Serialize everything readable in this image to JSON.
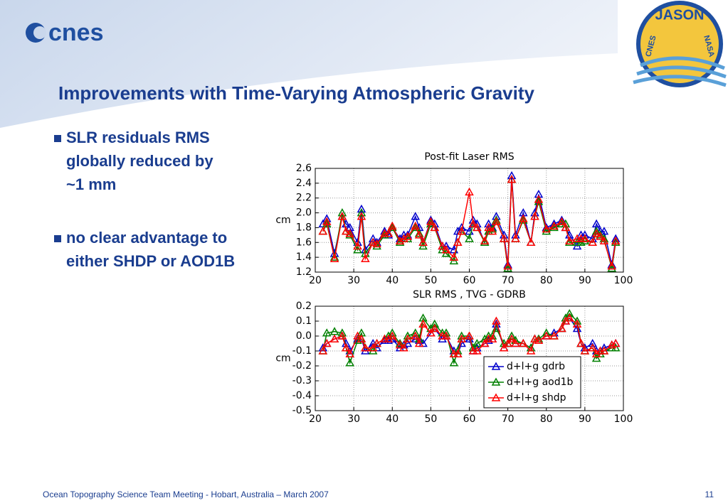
{
  "slide": {
    "logo": "cnes",
    "badge": [
      "JASON",
      "CNES",
      "NASA"
    ],
    "title": "Improvements with Time-Varying Atmospheric Gravity",
    "bullets": [
      [
        "SLR residuals RMS",
        "globally reduced by",
        "~1 mm"
      ],
      [
        "no clear advantage to",
        "either SHDP or AOD1B"
      ]
    ],
    "footer": "Ocean Topography Science Team Meeting - Hobart, Australia – March 2007",
    "page_number": "11"
  },
  "chart_data": [
    {
      "type": "line",
      "title": "Post-fit Laser RMS",
      "ylabel": "cm",
      "grid": true,
      "x": [
        22,
        23,
        25,
        27,
        28,
        29,
        31,
        32,
        33,
        35,
        36,
        38,
        39,
        40,
        42,
        43,
        44,
        46,
        47,
        48,
        50,
        51,
        53,
        54,
        56,
        57,
        58,
        60,
        61,
        62,
        64,
        65,
        66,
        67,
        69,
        70,
        71,
        72,
        74,
        76,
        77,
        78,
        80,
        82,
        84,
        85,
        86,
        88,
        89,
        90,
        92,
        93,
        94,
        95,
        97,
        98
      ],
      "xlim": [
        20,
        100
      ],
      "xticks": [
        20,
        30,
        40,
        50,
        60,
        70,
        80,
        90,
        100
      ],
      "ylim": [
        1.2,
        2.6
      ],
      "yticks": [
        1.2,
        1.4,
        1.6,
        1.8,
        {
          "value": 2,
          "label": "2.0"
        },
        2.2,
        2.4,
        2.6
      ],
      "series": [
        {
          "color": "#0000cc",
          "values": [
            1.85,
            1.92,
            1.45,
            1.95,
            1.85,
            1.8,
            1.6,
            2.05,
            1.5,
            1.65,
            1.6,
            1.75,
            1.7,
            1.8,
            1.65,
            1.7,
            1.7,
            1.95,
            1.8,
            1.6,
            1.9,
            1.85,
            1.55,
            1.55,
            1.5,
            1.75,
            1.8,
            1.75,
            1.9,
            1.85,
            1.6,
            1.85,
            1.8,
            1.95,
            1.7,
            1.3,
            2.5,
            1.7,
            2.0,
            1.6,
            2.0,
            2.25,
            1.8,
            1.85,
            1.9,
            1.8,
            1.7,
            1.55,
            1.7,
            1.7,
            1.65,
            1.85,
            1.75,
            1.75,
            1.3,
            1.65
          ]
        },
        {
          "color": "#008000",
          "values": [
            1.75,
            1.85,
            1.4,
            2.0,
            1.75,
            1.7,
            1.5,
            2.0,
            1.45,
            1.6,
            1.55,
            1.7,
            1.72,
            1.8,
            1.6,
            1.65,
            1.65,
            1.8,
            1.72,
            1.55,
            1.85,
            1.8,
            1.5,
            1.45,
            1.35,
            1.6,
            1.75,
            1.65,
            1.85,
            1.8,
            1.6,
            1.75,
            1.78,
            1.9,
            1.65,
            1.25,
            2.45,
            1.65,
            1.9,
            1.6,
            1.95,
            2.15,
            1.75,
            1.8,
            1.85,
            1.85,
            1.6,
            1.6,
            1.6,
            1.62,
            1.6,
            1.75,
            1.7,
            1.65,
            1.25,
            1.6
          ]
        },
        {
          "color": "#ff0000",
          "values": [
            1.75,
            1.88,
            1.38,
            1.95,
            1.75,
            1.72,
            1.55,
            1.95,
            1.38,
            1.6,
            1.58,
            1.72,
            1.72,
            1.82,
            1.62,
            1.65,
            1.68,
            1.82,
            1.7,
            1.6,
            1.88,
            1.8,
            1.55,
            1.5,
            1.4,
            1.6,
            1.75,
            2.28,
            1.85,
            1.8,
            1.62,
            1.8,
            1.75,
            1.88,
            1.65,
            1.28,
            2.45,
            1.65,
            1.92,
            1.6,
            1.95,
            2.18,
            1.78,
            1.82,
            1.88,
            1.8,
            1.62,
            1.65,
            1.65,
            1.65,
            1.6,
            1.72,
            1.68,
            1.62,
            1.28,
            1.62
          ]
        }
      ]
    },
    {
      "type": "line",
      "title": "SLR RMS , TVG - GDRB",
      "ylabel": "cm",
      "grid": true,
      "legend": "lower right",
      "x": [
        22,
        23,
        25,
        27,
        28,
        29,
        31,
        32,
        33,
        35,
        36,
        38,
        39,
        40,
        42,
        43,
        44,
        46,
        47,
        48,
        50,
        51,
        53,
        54,
        56,
        57,
        58,
        60,
        61,
        62,
        64,
        65,
        66,
        67,
        69,
        70,
        71,
        72,
        74,
        76,
        77,
        78,
        80,
        82,
        84,
        85,
        86,
        88,
        89,
        90,
        92,
        93,
        94,
        95,
        97,
        98
      ],
      "xlim": [
        20,
        100
      ],
      "xticks": [
        20,
        30,
        40,
        50,
        60,
        70,
        80,
        90,
        100
      ],
      "ylim": [
        -0.5,
        0.2
      ],
      "yticks": [
        -0.5,
        -0.4,
        -0.3,
        -0.2,
        -0.1,
        {
          "value": 0,
          "label": "0.0"
        },
        0.1,
        0.2
      ],
      "series": [
        {
          "name": "d+l+g gdrb",
          "color": "#0000cc",
          "values": [
            -0.08,
            -0.05,
            -0.02,
            0.0,
            -0.05,
            -0.1,
            -0.02,
            -0.02,
            -0.1,
            -0.05,
            -0.08,
            -0.03,
            -0.03,
            -0.02,
            -0.08,
            -0.06,
            -0.05,
            -0.02,
            -0.03,
            -0.05,
            0.02,
            0.05,
            -0.02,
            0.0,
            -0.1,
            -0.12,
            -0.05,
            -0.02,
            -0.1,
            -0.08,
            -0.05,
            -0.03,
            -0.02,
            0.08,
            -0.08,
            -0.05,
            -0.02,
            -0.05,
            -0.05,
            -0.08,
            -0.02,
            -0.03,
            0.0,
            0.02,
            0.05,
            0.1,
            0.12,
            0.05,
            -0.05,
            -0.08,
            -0.05,
            -0.1,
            -0.1,
            -0.08,
            -0.06,
            -0.05
          ]
        },
        {
          "name": "d+l+g aod1b",
          "color": "#008000",
          "values": [
            -0.1,
            0.02,
            0.03,
            0.02,
            -0.08,
            -0.18,
            -0.03,
            0.02,
            -0.08,
            -0.1,
            -0.05,
            -0.02,
            0.0,
            0.02,
            -0.05,
            -0.08,
            0.0,
            0.02,
            -0.02,
            0.12,
            0.05,
            0.08,
            0.02,
            0.02,
            -0.18,
            -0.1,
            0.0,
            0.0,
            -0.08,
            -0.05,
            -0.02,
            0.0,
            0.0,
            0.05,
            -0.05,
            -0.05,
            0.0,
            -0.03,
            -0.05,
            -0.08,
            -0.02,
            -0.02,
            0.02,
            0.0,
            0.05,
            0.12,
            0.15,
            0.1,
            -0.05,
            -0.1,
            -0.08,
            -0.15,
            -0.12,
            -0.1,
            -0.08,
            -0.08
          ]
        },
        {
          "name": "d+l+g shdp",
          "color": "#ff0000",
          "values": [
            -0.1,
            -0.05,
            -0.02,
            0.0,
            -0.08,
            -0.12,
            0.0,
            -0.02,
            -0.08,
            -0.08,
            -0.05,
            -0.02,
            -0.02,
            0.0,
            -0.06,
            -0.08,
            -0.02,
            0.0,
            -0.05,
            0.08,
            0.02,
            0.05,
            0.0,
            0.0,
            -0.12,
            -0.12,
            -0.02,
            0.0,
            -0.1,
            -0.1,
            -0.05,
            -0.02,
            -0.02,
            0.1,
            -0.08,
            -0.05,
            -0.02,
            -0.05,
            -0.05,
            -0.1,
            -0.02,
            -0.03,
            0.0,
            0.0,
            0.05,
            0.1,
            0.12,
            0.08,
            -0.05,
            -0.1,
            -0.08,
            -0.12,
            -0.1,
            -0.1,
            -0.06,
            -0.05
          ]
        }
      ]
    }
  ]
}
